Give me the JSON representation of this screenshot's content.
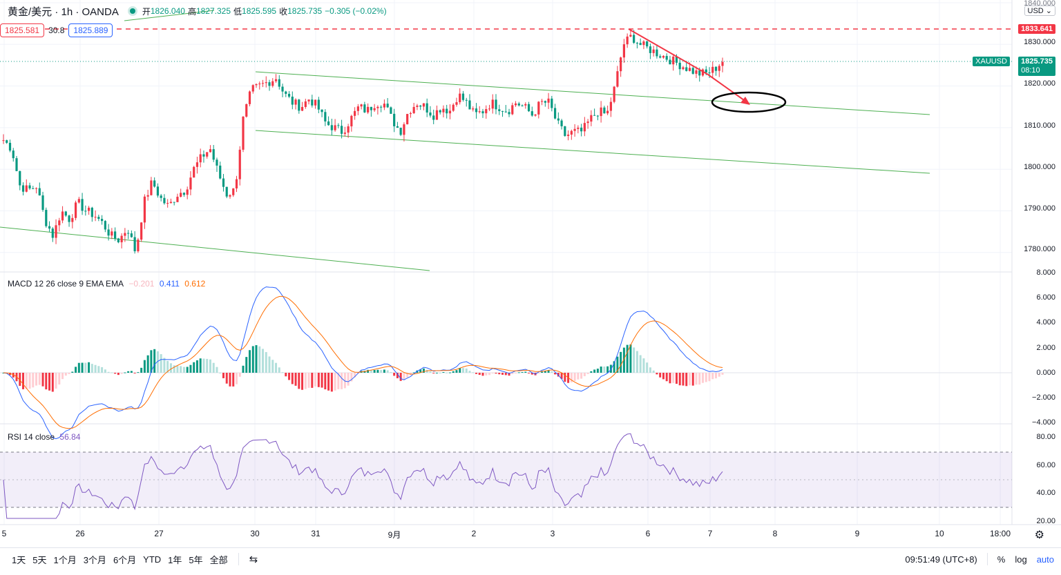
{
  "header": {
    "symbol": "黄金/美元 · 1h · OANDA",
    "open_label": "开",
    "open": "1826.040",
    "high_label": "高",
    "high": "1827.325",
    "low_label": "低",
    "low": "1825.595",
    "close_label": "收",
    "close": "1825.735",
    "change": "−0.305 (−0.02%)"
  },
  "trade": {
    "sell": "1825.581",
    "spread": "30.8",
    "buy": "1825.889"
  },
  "price_axis": {
    "currency": "USD ⌄",
    "ticks": [
      "1840.000",
      "1830.000",
      "1820.000",
      "1810.000",
      "1800.000",
      "1790.000",
      "1780.000"
    ],
    "line_tag": "1833.641",
    "symbol_tag": "XAUUSD",
    "last_price_tag": "1825.735",
    "countdown": "08:10"
  },
  "macd": {
    "label": "MACD 12 26 close 9 EMA EMA",
    "hist": "−0.201",
    "macd": "0.411",
    "signal": "0.612",
    "ticks": [
      "8.000",
      "6.000",
      "4.000",
      "2.000",
      "0.000",
      "−2.000",
      "−4.000"
    ]
  },
  "rsi": {
    "label": "RSI 14 close",
    "value": "56.84",
    "ticks": [
      "80.00",
      "60.00",
      "40.00",
      "20.00"
    ]
  },
  "time_axis": [
    "5",
    "26",
    "27",
    "30",
    "31",
    "9月",
    "2",
    "3",
    "6",
    "7",
    "8",
    "9",
    "10",
    "18:00"
  ],
  "bottom_bar": {
    "ranges": [
      "1天",
      "5天",
      "1个月",
      "3个月",
      "6个月",
      "YTD",
      "1年",
      "5年",
      "全部"
    ],
    "clock": "09:51:49 (UTC+8)",
    "percent": "%",
    "log": "log",
    "auto": "auto"
  },
  "colors": {
    "up": "#f23645",
    "down": "#089981",
    "channel": "#4caf50",
    "macd_line": "#2962ff",
    "signal_line": "#ff6d00",
    "rsi_line": "#7e57c2"
  },
  "chart_data": {
    "type": "candlestick",
    "price_range": [
      1777,
      1841
    ],
    "close_series_approx": [
      1807,
      1805,
      1796,
      1795,
      1796,
      1788,
      1784,
      1790,
      1788,
      1792,
      1790,
      1789,
      1787,
      1784,
      1783,
      1786,
      1780,
      1792,
      1797,
      1793,
      1791,
      1794,
      1795,
      1800,
      1803,
      1805,
      1799,
      1794,
      1795,
      1812,
      1819,
      1820,
      1821,
      1822,
      1818,
      1816,
      1815,
      1817,
      1815,
      1811,
      1810,
      1809,
      1812,
      1815,
      1814,
      1816,
      1816,
      1812,
      1809,
      1814,
      1816,
      1815,
      1813,
      1815,
      1814,
      1818,
      1816,
      1813,
      1814,
      1816,
      1815,
      1814,
      1816,
      1815,
      1813,
      1816,
      1816,
      1811,
      1808,
      1809,
      1809,
      1812,
      1814,
      1813,
      1820,
      1830,
      1832,
      1830,
      1829,
      1828,
      1827,
      1826,
      1825,
      1824,
      1823,
      1823,
      1824,
      1826
    ],
    "macd_range": [
      -4,
      8
    ],
    "rsi_range": [
      20,
      85
    ],
    "rsi_bands": [
      70,
      50,
      30
    ]
  }
}
